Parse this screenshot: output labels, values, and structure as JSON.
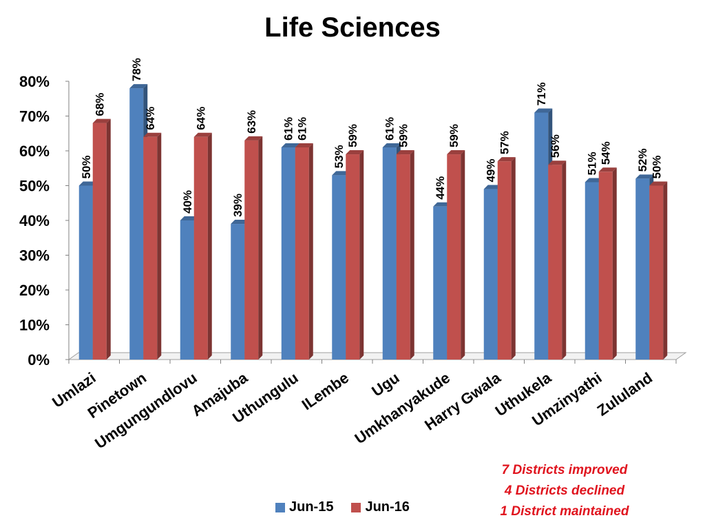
{
  "chart_data": {
    "type": "bar",
    "title": "Life Sciences",
    "categories": [
      "Umlazi",
      "Pinetown",
      "Umgungundlovu",
      "Amajuba",
      "Uthungulu",
      "ILembe",
      "Ugu",
      "Umkhanyakude",
      "Harry Gwala",
      "Uthukela",
      "Umzinyathi",
      "Zululand"
    ],
    "series": [
      {
        "name": "Jun-15",
        "color": "#4f81bd",
        "values": [
          50,
          78,
          40,
          39,
          61,
          53,
          61,
          44,
          49,
          71,
          51,
          52
        ]
      },
      {
        "name": "Jun-16",
        "color": "#c0504d",
        "values": [
          68,
          64,
          64,
          63,
          61,
          59,
          59,
          59,
          57,
          56,
          54,
          50
        ]
      }
    ],
    "ylim": [
      0,
      80
    ],
    "yticks": [
      0,
      10,
      20,
      30,
      40,
      50,
      60,
      70,
      80
    ],
    "value_suffix": "%",
    "legend_position": "bottom"
  },
  "notes": {
    "improved": "7 Districts improved",
    "declined": "4 Districts declined",
    "maintained": "1 District maintained"
  }
}
